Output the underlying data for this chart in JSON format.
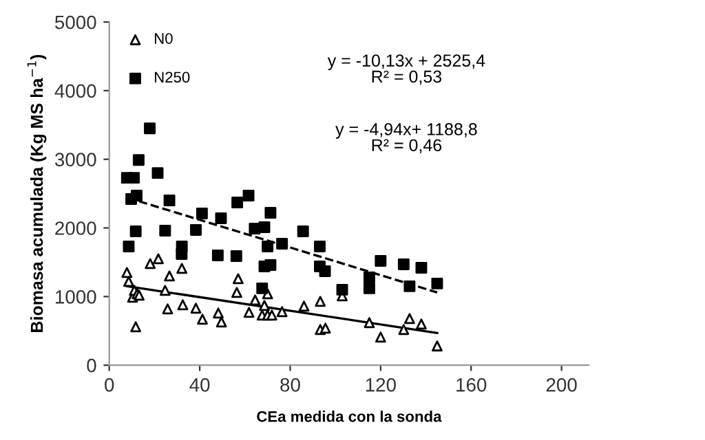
{
  "chart_data": {
    "type": "scatter",
    "xlabel": "CEa medida con la sonda",
    "ylabel": "Biomasa acumulada (Kg MS ha$^{−1}$)",
    "xlim": [
      0,
      212
    ],
    "xticks": [
      0,
      40,
      80,
      120,
      160,
      200
    ],
    "ylim": [
      0,
      5000
    ],
    "yticks": [
      0,
      1000,
      2000,
      3000,
      4000,
      5000
    ],
    "grid": false,
    "legend": "top left",
    "annotations": [
      "y = -10,13x + 2525,4\nR² = 0,53",
      "y = -4,94x+ 1188,8\nR² = 0,46"
    ],
    "series": [
      {
        "name": "N0",
        "color": "#000000",
        "marker": "triangle",
        "x": [
          7.8,
          8.6,
          10.3,
          11.1,
          12.3,
          13.2,
          11.7,
          18.1,
          21.7,
          26.6,
          24.7,
          25.8,
          32.1,
          32.5,
          38.3,
          41.2,
          48.2,
          49.6,
          57,
          56.4,
          61.8,
          64.5,
          67.6,
          68.6,
          70,
          70,
          71.9,
          76.4,
          86.1,
          93.3,
          93.3,
          95.6,
          103,
          115,
          120,
          130.2,
          132.8,
          138,
          145
        ],
        "values": [
          1350,
          1220,
          990,
          1090,
          1040,
          1020,
          560,
          1480,
          1550,
          1300,
          1090,
          820,
          1410,
          880,
          830,
          670,
          760,
          630,
          1260,
          1060,
          770,
          950,
          730,
          870,
          1040,
          730,
          730,
          780,
          860,
          930,
          520,
          540,
          1010,
          620,
          410,
          520,
          680,
          600,
          280
        ]
      },
      {
        "name": "N250",
        "color": "#000000",
        "marker": "square",
        "x": [
          7.8,
          10.9,
          17.9,
          13,
          21.4,
          9.7,
          12.1,
          26.6,
          41,
          49.4,
          56.6,
          61.6,
          64.3,
          68.6,
          71.3,
          70,
          76.4,
          85.7,
          93.1,
          8.6,
          11.7,
          24.7,
          38.3,
          32.1,
          32,
          48,
          56.2,
          68.6,
          71.3,
          67.6,
          93.1,
          95.4,
          103,
          115,
          115,
          120,
          130.2,
          132.8,
          138,
          145
        ],
        "values": [
          2730,
          2730,
          3450,
          2990,
          2800,
          2420,
          2470,
          2400,
          2210,
          2140,
          2370,
          2470,
          1990,
          2010,
          2220,
          1730,
          1770,
          1950,
          1730,
          1730,
          1950,
          1960,
          1970,
          1730,
          1620,
          1600,
          1590,
          1440,
          1460,
          1120,
          1440,
          1370,
          1100,
          1280,
          1120,
          1520,
          1470,
          1150,
          1420,
          1190
        ]
      },
      {
        "type": "line",
        "color": "#000000",
        "line_style": "solid",
        "marker": "none",
        "x": [
          8,
          145
        ],
        "values": [
          1150,
          470
        ]
      },
      {
        "type": "line",
        "color": "#000000",
        "line_style": "dashed",
        "marker": "none",
        "x": [
          8,
          145
        ],
        "values": [
          2440,
          1060
        ]
      }
    ]
  }
}
